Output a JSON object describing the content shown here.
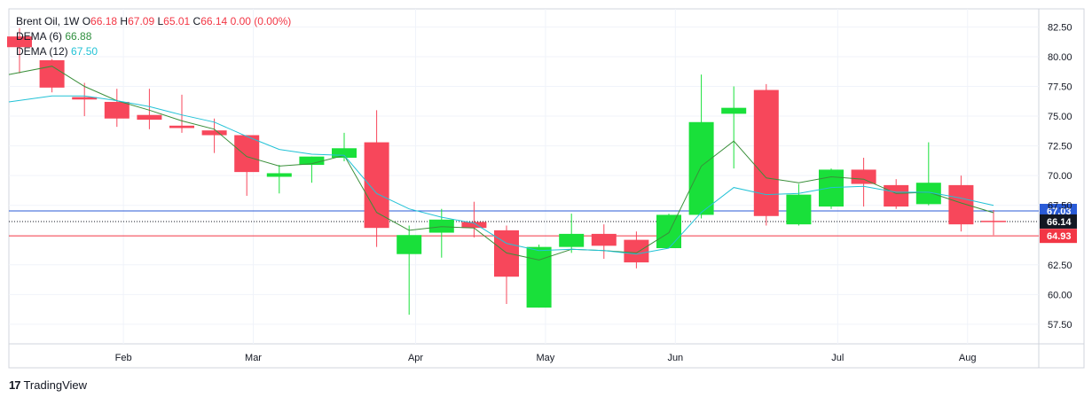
{
  "legend": {
    "symbol": "Brent Oil, 1W",
    "o_label": "O",
    "o_value": "66.18",
    "h_label": "H",
    "h_value": "67.09",
    "l_label": "L",
    "l_value": "65.01",
    "c_label": "C",
    "c_value": "66.14",
    "change": "0.00 (0.00%)",
    "dema6_label": "DEMA (6)",
    "dema6_value": "66.88",
    "dema12_label": "DEMA (12)",
    "dema12_value": "67.50"
  },
  "brand": {
    "logo": "17",
    "name": "TradingView"
  },
  "colors": {
    "up": "#19e03a",
    "down": "#f7475b",
    "dema6": "#3a8f3a",
    "dema12": "#22c2d6",
    "line_blue": "#2a5bd7",
    "line_red": "#f23645",
    "grid": "#f0f3fa",
    "axis": "#d1d4dc"
  },
  "chart_data": {
    "type": "candlestick",
    "ylim": [
      56,
      83.5
    ],
    "y_ticks": [
      "82.50",
      "80.00",
      "77.50",
      "75.00",
      "72.50",
      "70.00",
      "67.50",
      "62.50",
      "60.00",
      "57.50"
    ],
    "x_ticks": [
      {
        "label": "Feb",
        "bar": 3.2
      },
      {
        "label": "Mar",
        "bar": 7.2
      },
      {
        "label": "Apr",
        "bar": 12.2
      },
      {
        "label": "May",
        "bar": 16.2
      },
      {
        "label": "Jun",
        "bar": 20.2
      },
      {
        "label": "Jul",
        "bar": 25.2
      },
      {
        "label": "Aug",
        "bar": 29.2
      }
    ],
    "candles": [
      {
        "o": 81.7,
        "h": 82.4,
        "l": 78.6,
        "c": 80.8
      },
      {
        "o": 79.7,
        "h": 79.8,
        "l": 77.0,
        "c": 77.4
      },
      {
        "o": 76.6,
        "h": 77.8,
        "l": 75.0,
        "c": 76.4
      },
      {
        "o": 76.2,
        "h": 77.3,
        "l": 74.1,
        "c": 74.8
      },
      {
        "o": 75.1,
        "h": 77.3,
        "l": 73.9,
        "c": 74.7
      },
      {
        "o": 74.2,
        "h": 76.8,
        "l": 73.6,
        "c": 74.0
      },
      {
        "o": 73.8,
        "h": 74.8,
        "l": 71.9,
        "c": 73.4
      },
      {
        "o": 73.4,
        "h": 73.4,
        "l": 68.3,
        "c": 70.3
      },
      {
        "o": 69.9,
        "h": 70.9,
        "l": 68.5,
        "c": 70.2
      },
      {
        "o": 70.9,
        "h": 71.6,
        "l": 69.4,
        "c": 71.6
      },
      {
        "o": 71.5,
        "h": 73.6,
        "l": 71.2,
        "c": 72.3
      },
      {
        "o": 72.8,
        "h": 75.5,
        "l": 64.0,
        "c": 65.6
      },
      {
        "o": 63.4,
        "h": 65.8,
        "l": 58.3,
        "c": 65.0
      },
      {
        "o": 65.2,
        "h": 67.2,
        "l": 63.1,
        "c": 66.3
      },
      {
        "o": 66.1,
        "h": 67.8,
        "l": 64.8,
        "c": 65.6
      },
      {
        "o": 65.4,
        "h": 65.8,
        "l": 59.2,
        "c": 61.5
      },
      {
        "o": 58.9,
        "h": 64.2,
        "l": 58.9,
        "c": 64.0
      },
      {
        "o": 64.0,
        "h": 66.8,
        "l": 63.5,
        "c": 65.1
      },
      {
        "o": 65.1,
        "h": 65.9,
        "l": 63.0,
        "c": 64.1
      },
      {
        "o": 64.6,
        "h": 65.3,
        "l": 62.2,
        "c": 62.7
      },
      {
        "o": 63.9,
        "h": 66.8,
        "l": 63.9,
        "c": 66.7
      },
      {
        "o": 66.7,
        "h": 78.5,
        "l": 66.4,
        "c": 74.5
      },
      {
        "o": 75.2,
        "h": 77.5,
        "l": 70.6,
        "c": 75.7
      },
      {
        "o": 77.2,
        "h": 77.7,
        "l": 65.8,
        "c": 66.6
      },
      {
        "o": 65.9,
        "h": 69.3,
        "l": 65.8,
        "c": 68.4
      },
      {
        "o": 67.4,
        "h": 70.6,
        "l": 67.2,
        "c": 70.5
      },
      {
        "o": 70.5,
        "h": 71.5,
        "l": 67.4,
        "c": 69.3
      },
      {
        "o": 69.2,
        "h": 69.7,
        "l": 67.2,
        "c": 67.4
      },
      {
        "o": 67.6,
        "h": 72.8,
        "l": 67.5,
        "c": 69.4
      },
      {
        "o": 69.2,
        "h": 70.0,
        "l": 65.3,
        "c": 65.9
      },
      {
        "o": 66.2,
        "h": 67.1,
        "l": 65.0,
        "c": 66.1
      }
    ],
    "series": [
      {
        "values": [
          78.5,
          79.2,
          77.5,
          76.3,
          75.5,
          74.6,
          73.9,
          71.6,
          70.8,
          71.0,
          71.7,
          66.9,
          65.4,
          65.7,
          65.6,
          63.5,
          62.9,
          63.8,
          63.7,
          63.5,
          65.2,
          70.8,
          72.9,
          69.8,
          69.4,
          69.9,
          69.7,
          68.5,
          68.6,
          67.7,
          66.88
        ]
      },
      {
        "values": [
          76.2,
          76.7,
          76.7,
          76.3,
          75.8,
          75.1,
          74.5,
          73.3,
          72.2,
          71.8,
          71.7,
          68.5,
          67.2,
          66.5,
          66.0,
          64.3,
          63.7,
          63.8,
          63.7,
          63.4,
          63.9,
          66.9,
          69.0,
          68.4,
          68.5,
          69.0,
          69.1,
          68.6,
          68.6,
          68.1,
          67.5
        ]
      }
    ],
    "price_lines": [
      {
        "value": 67.03,
        "label": "67.03",
        "color": "#2a5bd7",
        "style": "solid"
      },
      {
        "value": 66.14,
        "label": "66.14",
        "color": "#131722",
        "style": "dotted"
      },
      {
        "value": 64.93,
        "label": "64.93",
        "color": "#f23645",
        "style": "solid"
      }
    ]
  }
}
